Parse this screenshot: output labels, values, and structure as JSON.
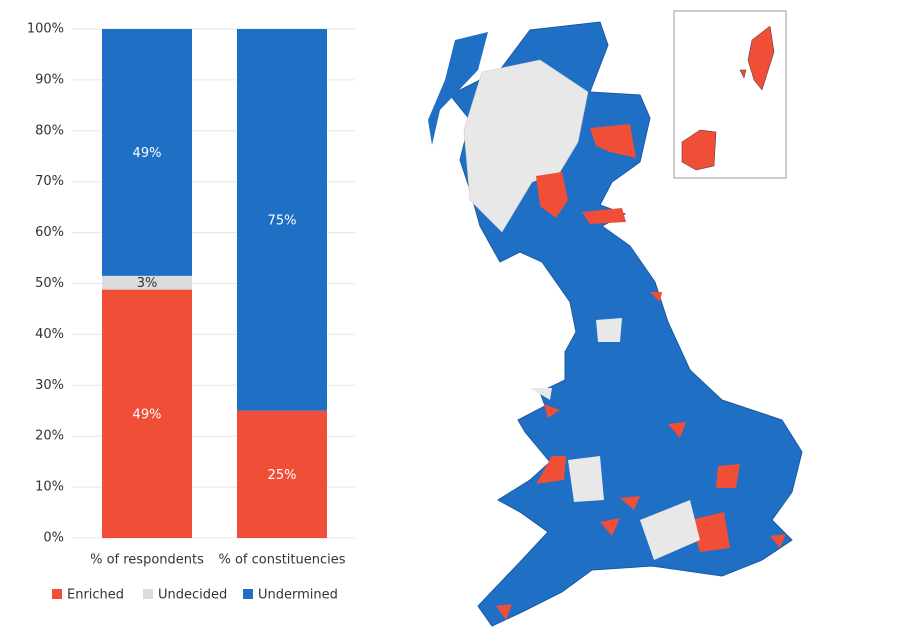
{
  "chart_data": {
    "type": "stacked_bar",
    "categories": [
      "% of respondents",
      "% of constituencies"
    ],
    "series": [
      {
        "name": "Enriched",
        "color": "#f04e37",
        "values": [
          48.8,
          25
        ],
        "value_labels": [
          "49%",
          "25%"
        ]
      },
      {
        "name": "Undecided",
        "color": "#dcdcdc",
        "values": [
          2.7,
          0
        ],
        "value_labels": [
          "3%",
          null
        ]
      },
      {
        "name": "Undermined",
        "color": "#1f6fc5",
        "values": [
          48.5,
          75
        ],
        "value_labels": [
          "49%",
          "75%"
        ]
      }
    ],
    "ylim": [
      0,
      100
    ],
    "yticks": [
      {
        "value": 0,
        "label": "0%"
      },
      {
        "value": 10,
        "label": "10%"
      },
      {
        "value": 20,
        "label": "20%"
      },
      {
        "value": 30,
        "label": "30%"
      },
      {
        "value": 40,
        "label": "40%"
      },
      {
        "value": 50,
        "label": "50%"
      },
      {
        "value": 60,
        "label": "60%"
      },
      {
        "value": 70,
        "label": "70%"
      },
      {
        "value": 80,
        "label": "80%"
      },
      {
        "value": 90,
        "label": "90%"
      },
      {
        "value": 100,
        "label": "100%"
      }
    ],
    "grid": true,
    "legend": "bottom"
  }
}
